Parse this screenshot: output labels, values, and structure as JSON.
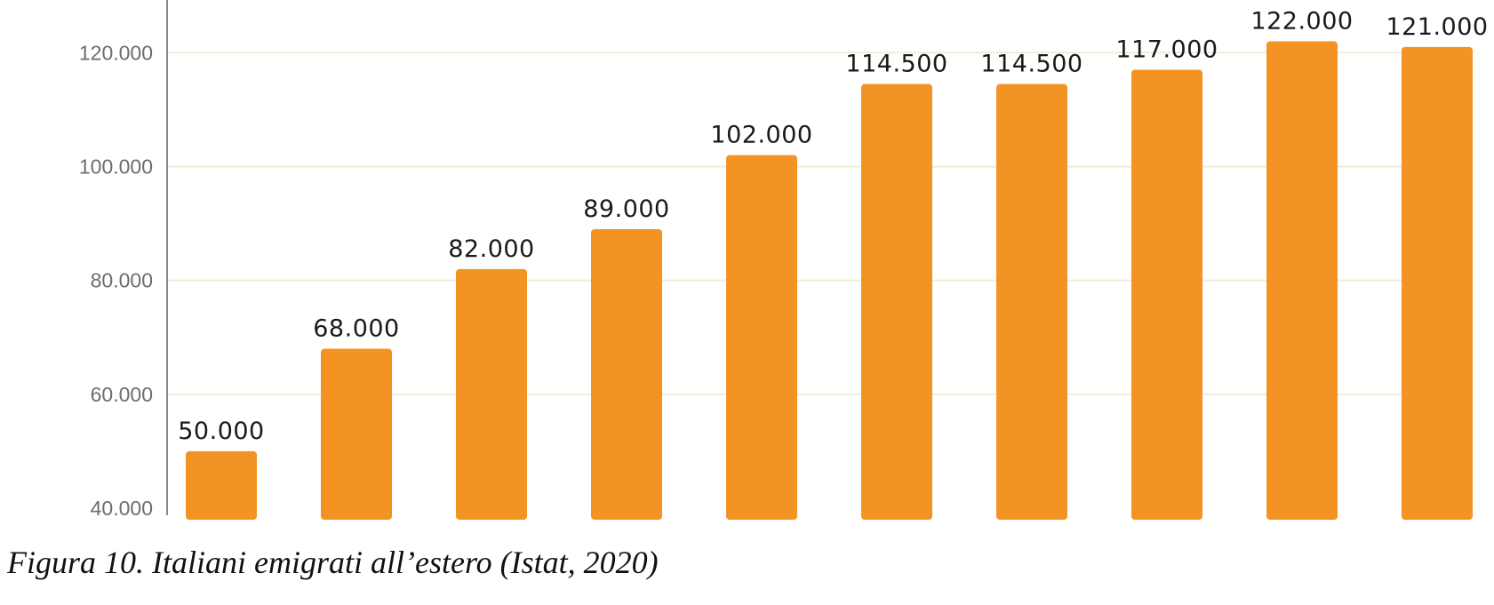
{
  "caption": "Figura 10. Italiani emigrati all’estero (Istat, 2020)",
  "chart_data": {
    "type": "bar",
    "title": "",
    "xlabel": "",
    "ylabel": "",
    "ylim": [
      40000,
      128000
    ],
    "yticks": [
      40000,
      60000,
      80000,
      100000,
      120000
    ],
    "ytick_labels": [
      "40.000",
      "60.000",
      "80.000",
      "100.000",
      "120.000"
    ],
    "grid": true,
    "bar_color": "#f39323",
    "values": [
      50000,
      68000,
      82000,
      89000,
      102000,
      114500,
      114500,
      117000,
      122000,
      121000
    ],
    "value_labels": [
      "50.000",
      "68.000",
      "82.000",
      "89.000",
      "102.000",
      "114.500",
      "114.500",
      "117.000",
      "122.000",
      "121.000"
    ]
  }
}
